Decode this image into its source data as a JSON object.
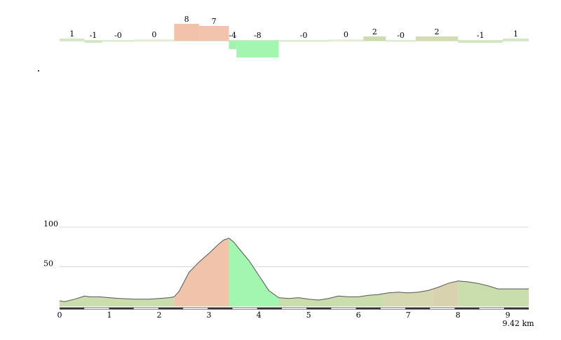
{
  "chart_data": [
    {
      "type": "bar",
      "description_role": "gradient",
      "segments": [
        {
          "start": 0.0,
          "end": 0.5,
          "value": 1,
          "label": "1",
          "color": "#d8e6c4"
        },
        {
          "start": 0.5,
          "end": 0.85,
          "value": -1,
          "label": "-1",
          "color": "#cfe8c0"
        },
        {
          "start": 0.85,
          "end": 1.5,
          "value": -0.3,
          "label": "-0",
          "color": "#e4f1dc"
        },
        {
          "start": 1.5,
          "end": 2.3,
          "value": 0.3,
          "label": "0",
          "color": "#e9f2df"
        },
        {
          "start": 2.3,
          "end": 2.8,
          "value": 8,
          "label": "8",
          "color": "#f2c2aa"
        },
        {
          "start": 2.8,
          "end": 3.4,
          "value": 7,
          "label": "7",
          "color": "#f2c4ad"
        },
        {
          "start": 3.4,
          "end": 3.55,
          "value": -4,
          "label": "-4",
          "color": "#a6f0b2"
        },
        {
          "start": 3.55,
          "end": 4.4,
          "value": -8,
          "label": "-8",
          "color": "#a4f5b0"
        },
        {
          "start": 4.4,
          "end": 5.4,
          "value": -0.3,
          "label": "-0",
          "color": "#e4f1dc"
        },
        {
          "start": 5.4,
          "end": 6.1,
          "value": 0.3,
          "label": "0",
          "color": "#e9f2df"
        },
        {
          "start": 6.1,
          "end": 6.55,
          "value": 2,
          "label": "2",
          "color": "#cfdcb0"
        },
        {
          "start": 6.55,
          "end": 7.15,
          "value": -0.3,
          "label": "-0",
          "color": "#e4f1dc"
        },
        {
          "start": 7.15,
          "end": 8.0,
          "value": 2,
          "label": "2",
          "color": "#d3dcb0"
        },
        {
          "start": 8.0,
          "end": 8.9,
          "value": -1,
          "label": "-1",
          "color": "#cfe8c0"
        },
        {
          "start": 8.9,
          "end": 9.42,
          "value": 1,
          "label": "1",
          "color": "#d8e6c4"
        }
      ]
    },
    {
      "type": "area",
      "description_role": "elevation",
      "x": [
        0,
        0.1,
        0.3,
        0.5,
        0.6,
        0.8,
        1.0,
        1.2,
        1.5,
        1.8,
        2.0,
        2.2,
        2.3,
        2.4,
        2.5,
        2.6,
        2.8,
        3.0,
        3.1,
        3.2,
        3.3,
        3.4,
        3.5,
        3.6,
        3.8,
        4.0,
        4.2,
        4.4,
        4.6,
        4.8,
        5.0,
        5.2,
        5.4,
        5.6,
        5.8,
        6.0,
        6.2,
        6.4,
        6.6,
        6.8,
        7.0,
        7.2,
        7.4,
        7.6,
        7.8,
        8.0,
        8.2,
        8.4,
        8.6,
        8.8,
        9.0,
        9.2,
        9.42
      ],
      "y": [
        7,
        6,
        9,
        13,
        12,
        12,
        11,
        10,
        9,
        9,
        10,
        11,
        12,
        19,
        31,
        43,
        56,
        67,
        73,
        79,
        84,
        86,
        81,
        73,
        58,
        39,
        20,
        11,
        10,
        11,
        9,
        8,
        10,
        13,
        12,
        12,
        14,
        15,
        17,
        18,
        17,
        18,
        20,
        24,
        29,
        32,
        31,
        29,
        26,
        22,
        22,
        22,
        22
      ],
      "yticks": [
        50,
        100
      ],
      "xticks": [
        0,
        1,
        2,
        3,
        4,
        5,
        6,
        7,
        8,
        9
      ],
      "end_label": "9.42 km",
      "bands": [
        {
          "start": 0.0,
          "end": 2.3,
          "color": "#c9ddad"
        },
        {
          "start": 2.3,
          "end": 3.4,
          "color": "#f1c3aa"
        },
        {
          "start": 3.4,
          "end": 4.4,
          "color": "#a3f6b0"
        },
        {
          "start": 4.4,
          "end": 6.5,
          "color": "#c9ddad"
        },
        {
          "start": 6.5,
          "end": 7.5,
          "color": "#d5d8b0"
        },
        {
          "start": 7.5,
          "end": 8.0,
          "color": "#d9d2ae"
        },
        {
          "start": 8.0,
          "end": 9.42,
          "color": "#c9ddad"
        }
      ],
      "ylim": [
        0,
        100
      ],
      "xlim": [
        0,
        9.42
      ]
    }
  ]
}
